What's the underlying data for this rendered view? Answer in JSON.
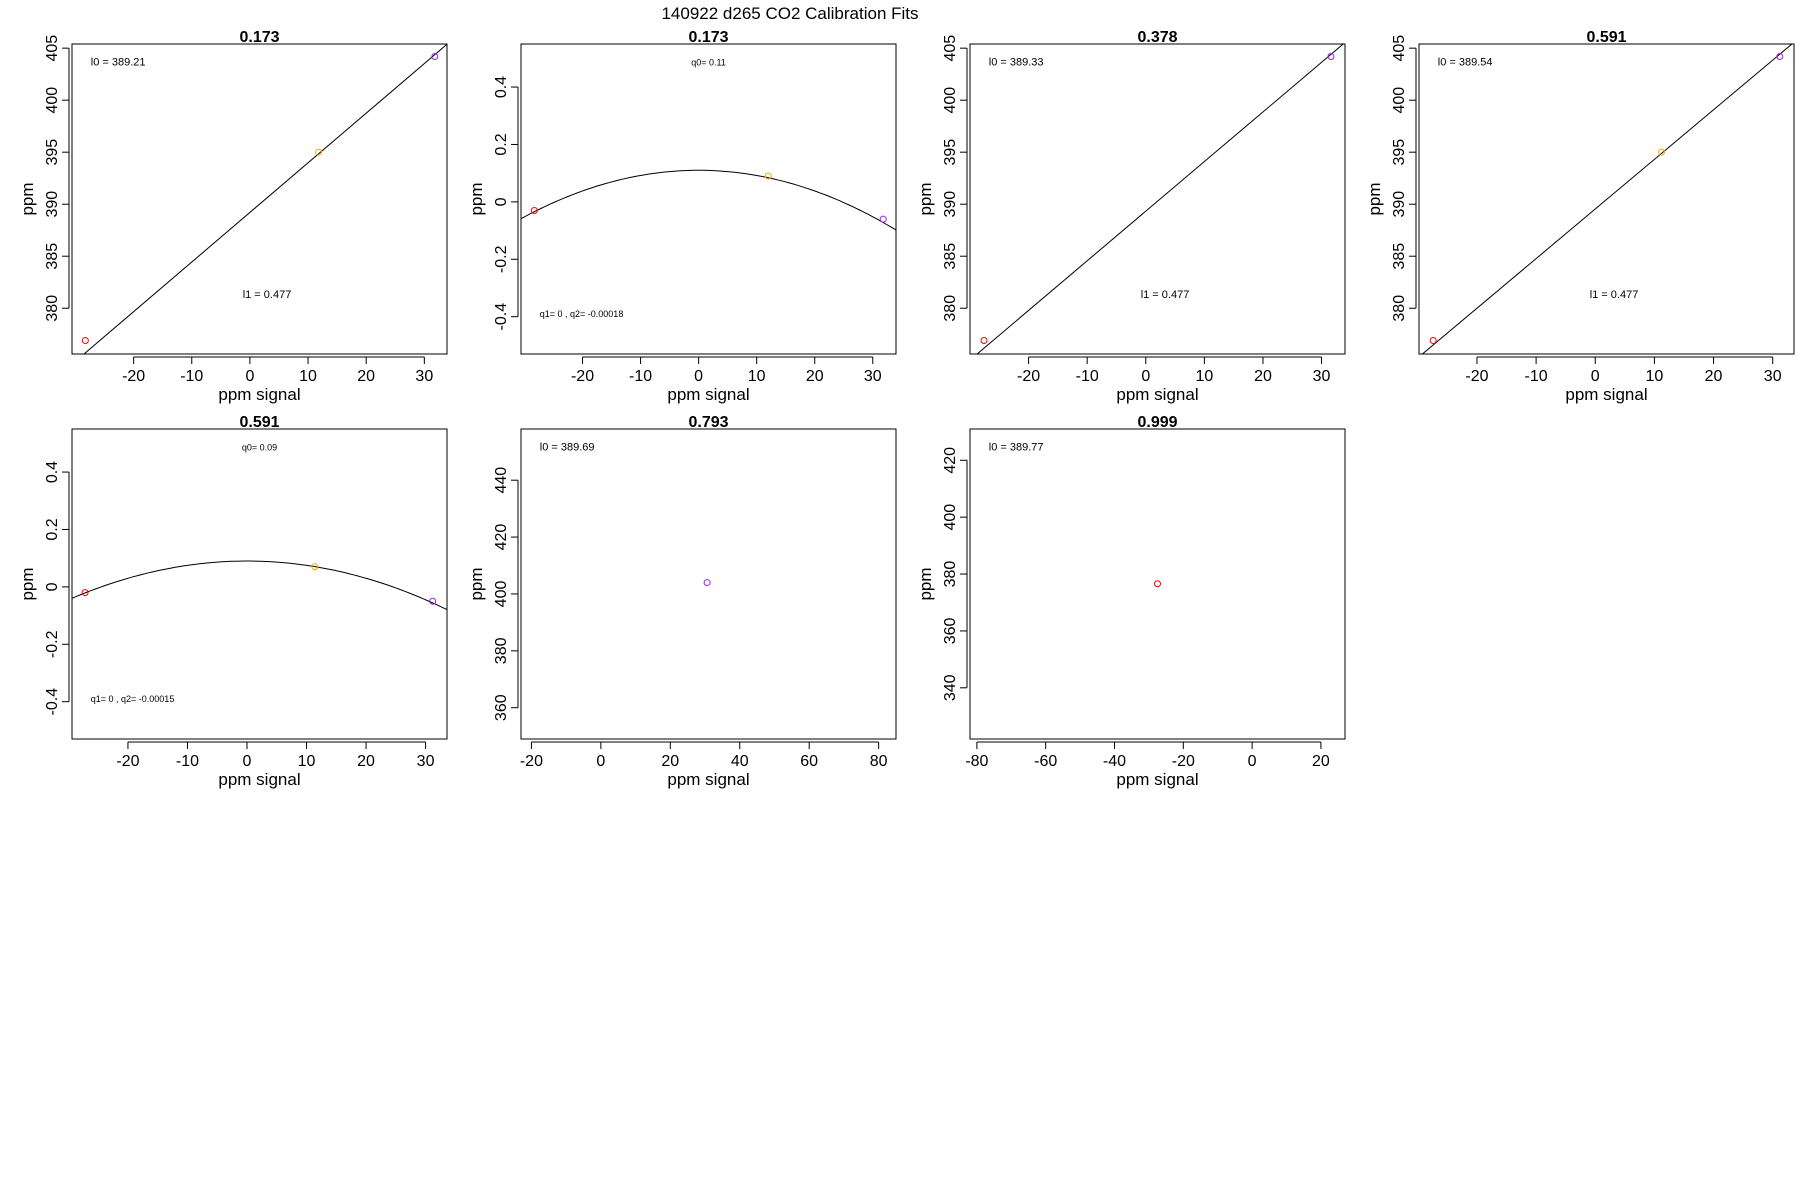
{
  "figure": {
    "title": "140922   d265   CO2 Calibration Fits"
  },
  "colors": {
    "low": "#ff0000",
    "mid": "#ffa500",
    "high": "#a020f0",
    "line": "#000000"
  },
  "chart_data": [
    {
      "type": "scatter",
      "title": "0.173",
      "xlabel": "ppm signal",
      "ylabel": "ppm",
      "xlim": [
        -30.6,
        33.9
      ],
      "ylim": [
        375.6,
        405.4
      ],
      "xticks": [
        -20,
        -10,
        0,
        10,
        20,
        30
      ],
      "yticks": [
        380,
        385,
        390,
        395,
        400,
        405
      ],
      "fit": "linear",
      "fit_params": {
        "l0": 389.21,
        "l1": 0.477
      },
      "annotations": [
        "l0 =  389.21",
        "l1 =  0.477"
      ],
      "points": [
        {
          "x": -28.3,
          "y": 376.9,
          "color": "#ff0000"
        },
        {
          "x": 11.8,
          "y": 395.0,
          "color": "#ffa500"
        },
        {
          "x": 31.8,
          "y": 404.2,
          "color": "#a020f0"
        }
      ]
    },
    {
      "type": "scatter",
      "title": "0.173",
      "xlabel": "ppm signal",
      "ylabel": "ppm",
      "xlim": [
        -30.6,
        34.0
      ],
      "ylim": [
        -0.53,
        0.55
      ],
      "xticks": [
        -20,
        -10,
        0,
        10,
        20,
        30
      ],
      "yticks": [
        -0.4,
        -0.2,
        0.0,
        0.2,
        0.4
      ],
      "fit": "quadratic",
      "fit_params": {
        "q0": 0.11,
        "q1": 0,
        "q2": -0.00018
      },
      "annotations": [
        "q0= 0.11",
        "q1= 0 , q2= -0.00018"
      ],
      "points": [
        {
          "x": -28.3,
          "y": -0.03,
          "color": "#ff0000"
        },
        {
          "x": 12.0,
          "y": 0.09,
          "color": "#ffa500"
        },
        {
          "x": 31.8,
          "y": -0.06,
          "color": "#a020f0"
        }
      ]
    },
    {
      "type": "scatter",
      "title": "0.378",
      "xlabel": "ppm signal",
      "ylabel": "ppm",
      "xlim": [
        -30.0,
        34.0
      ],
      "ylim": [
        375.6,
        405.4
      ],
      "xticks": [
        -20,
        -10,
        0,
        10,
        20,
        30
      ],
      "yticks": [
        380,
        385,
        390,
        395,
        400,
        405
      ],
      "fit": "linear",
      "fit_params": {
        "l0": 389.33,
        "l1": 0.477
      },
      "annotations": [
        "l0 =  389.33",
        "l1 =  0.477"
      ],
      "points": [
        {
          "x": -27.6,
          "y": 376.9,
          "color": "#ff0000"
        },
        {
          "x": 31.6,
          "y": 404.2,
          "color": "#a020f0"
        }
      ]
    },
    {
      "type": "scatter",
      "title": "0.591",
      "xlabel": "ppm signal",
      "ylabel": "ppm",
      "xlim": [
        -29.8,
        33.6
      ],
      "ylim": [
        375.6,
        405.4
      ],
      "xticks": [
        -20,
        -10,
        0,
        10,
        20,
        30
      ],
      "yticks": [
        380,
        385,
        390,
        395,
        400,
        405
      ],
      "fit": "linear",
      "fit_params": {
        "l0": 389.54,
        "l1": 0.477
      },
      "annotations": [
        "l0 =  389.54",
        "l1 =  0.477"
      ],
      "points": [
        {
          "x": -27.4,
          "y": 376.9,
          "color": "#ff0000"
        },
        {
          "x": 11.2,
          "y": 395.0,
          "color": "#ffa500"
        },
        {
          "x": 31.2,
          "y": 404.2,
          "color": "#a020f0"
        }
      ]
    },
    {
      "type": "scatter",
      "title": "0.591",
      "xlabel": "ppm signal",
      "ylabel": "ppm",
      "xlim": [
        -29.4,
        33.6
      ],
      "ylim": [
        -0.53,
        0.55
      ],
      "xticks": [
        -20,
        -10,
        0,
        10,
        20,
        30
      ],
      "yticks": [
        -0.4,
        -0.2,
        0.0,
        0.2,
        0.4
      ],
      "fit": "quadratic",
      "fit_params": {
        "q0": 0.09,
        "q1": 0,
        "q2": -0.00015
      },
      "annotations": [
        "q0= 0.09",
        "q1= 0 , q2= -0.00015"
      ],
      "points": [
        {
          "x": -27.2,
          "y": -0.02,
          "color": "#ff0000"
        },
        {
          "x": 11.4,
          "y": 0.07,
          "color": "#ffa500"
        },
        {
          "x": 31.2,
          "y": -0.05,
          "color": "#a020f0"
        }
      ]
    },
    {
      "type": "scatter",
      "title": "0.793",
      "xlabel": "ppm signal",
      "ylabel": "ppm",
      "xlim": [
        -23.0,
        85.0
      ],
      "ylim": [
        349.0,
        458.0
      ],
      "xticks": [
        -20,
        0,
        20,
        40,
        60,
        80
      ],
      "yticks": [
        360,
        380,
        400,
        420,
        440
      ],
      "fit": "none",
      "fit_params": {
        "l0": 389.69
      },
      "annotations": [
        "l0 =  389.69"
      ],
      "points": [
        {
          "x": 30.6,
          "y": 404.0,
          "color": "#a020f0"
        }
      ]
    },
    {
      "type": "scatter",
      "title": "0.999",
      "xlabel": "ppm signal",
      "ylabel": "ppm",
      "xlim": [
        -82.0,
        27.0
      ],
      "ylim": [
        322.0,
        431.0
      ],
      "xticks": [
        -80,
        -60,
        -40,
        -20,
        0,
        20
      ],
      "yticks": [
        340,
        360,
        380,
        400,
        420
      ],
      "fit": "none",
      "fit_params": {
        "l0": 389.77
      },
      "annotations": [
        "l0 =  389.77"
      ],
      "points": [
        {
          "x": -27.5,
          "y": 376.6,
          "color": "#ff0000"
        }
      ]
    }
  ]
}
